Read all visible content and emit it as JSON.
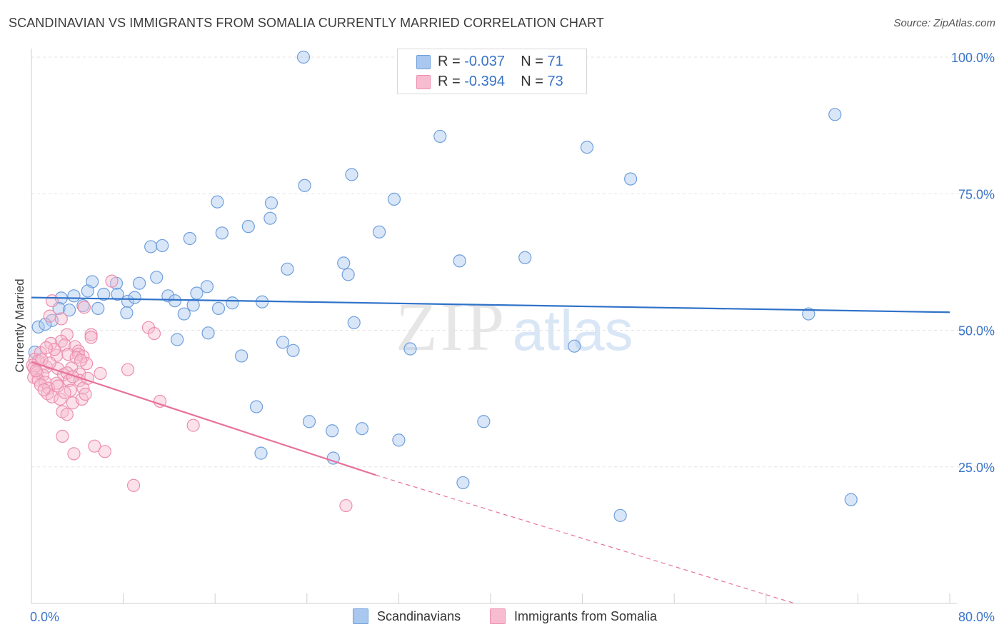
{
  "title": "SCANDINAVIAN VS IMMIGRANTS FROM SOMALIA CURRENTLY MARRIED CORRELATION CHART",
  "source": "Source: ZipAtlas.com",
  "watermark": {
    "zip": "ZIP",
    "atlas": "atlas"
  },
  "legend_top": {
    "rows": [
      {
        "r_label": "R =",
        "r_value": "-0.037",
        "n_label": "N =",
        "n_value": "71"
      },
      {
        "r_label": "R =",
        "r_value": "-0.394",
        "n_label": "N =",
        "n_value": "73"
      }
    ]
  },
  "legend_bottom": {
    "series_a": "Scandinavians",
    "series_b": "Immigrants from Somalia"
  },
  "colors": {
    "blue_fill": "#a9c8f0",
    "blue_stroke": "#6f9fdc",
    "blue_line": "#2f72c9",
    "pink_fill": "#f7bcd0",
    "pink_stroke": "#ec8fae",
    "pink_line": "#e8719b",
    "tick_text": "#3a74c8",
    "grid": "#e3e3e3"
  },
  "chart_data": {
    "type": "scatter",
    "title": "SCANDINAVIAN VS IMMIGRANTS FROM SOMALIA CURRENTLY MARRIED CORRELATION CHART",
    "xlabel": "",
    "ylabel": "Currently Married",
    "xlim": [
      0,
      80
    ],
    "ylim": [
      0,
      100
    ],
    "x_tick_labels": [
      "0.0%",
      "80.0%"
    ],
    "y_ticks": [
      25,
      50,
      75,
      100
    ],
    "y_tick_labels": [
      "25.0%",
      "50.0%",
      "75.0%",
      "100.0%"
    ],
    "grid": true,
    "series": [
      {
        "name": "Scandinavians",
        "r": -0.037,
        "n": 71,
        "trend": {
          "x": [
            0,
            80
          ],
          "y": [
            56.0,
            53.3
          ]
        },
        "points": [
          [
            23.7,
            100.0
          ],
          [
            70.0,
            89.5
          ],
          [
            35.6,
            85.5
          ],
          [
            48.4,
            83.5
          ],
          [
            27.9,
            78.5
          ],
          [
            52.2,
            77.7
          ],
          [
            23.8,
            76.5
          ],
          [
            16.2,
            73.5
          ],
          [
            20.9,
            73.3
          ],
          [
            31.6,
            74.0
          ],
          [
            20.8,
            70.5
          ],
          [
            18.9,
            69.0
          ],
          [
            16.6,
            67.8
          ],
          [
            30.3,
            68.0
          ],
          [
            13.8,
            66.8
          ],
          [
            10.4,
            65.3
          ],
          [
            11.4,
            65.5
          ],
          [
            37.3,
            62.7
          ],
          [
            43.0,
            63.3
          ],
          [
            22.3,
            61.2
          ],
          [
            27.2,
            62.3
          ],
          [
            27.6,
            60.2
          ],
          [
            10.9,
            59.7
          ],
          [
            5.3,
            58.9
          ],
          [
            7.4,
            58.6
          ],
          [
            9.4,
            58.6
          ],
          [
            15.3,
            58.0
          ],
          [
            4.9,
            57.2
          ],
          [
            14.4,
            56.8
          ],
          [
            3.7,
            56.3
          ],
          [
            6.3,
            56.6
          ],
          [
            7.5,
            56.6
          ],
          [
            2.6,
            55.9
          ],
          [
            8.4,
            55.3
          ],
          [
            9.0,
            56.0
          ],
          [
            11.9,
            56.3
          ],
          [
            12.5,
            55.4
          ],
          [
            17.5,
            55.0
          ],
          [
            20.1,
            55.2
          ],
          [
            4.5,
            54.5
          ],
          [
            2.4,
            54.0
          ],
          [
            3.3,
            53.7
          ],
          [
            5.8,
            54.0
          ],
          [
            14.1,
            54.6
          ],
          [
            16.3,
            54.0
          ],
          [
            8.3,
            53.2
          ],
          [
            13.3,
            53.0
          ],
          [
            1.8,
            51.8
          ],
          [
            0.6,
            50.6
          ],
          [
            1.2,
            51.1
          ],
          [
            28.1,
            51.4
          ],
          [
            67.7,
            53.0
          ],
          [
            15.4,
            49.5
          ],
          [
            12.7,
            48.3
          ],
          [
            21.9,
            47.8
          ],
          [
            22.8,
            46.3
          ],
          [
            33.0,
            46.6
          ],
          [
            47.3,
            47.1
          ],
          [
            18.3,
            45.3
          ],
          [
            0.3,
            46.0
          ],
          [
            19.6,
            36.0
          ],
          [
            24.2,
            33.3
          ],
          [
            26.2,
            31.6
          ],
          [
            28.8,
            32.0
          ],
          [
            32.0,
            29.9
          ],
          [
            39.4,
            33.3
          ],
          [
            20.0,
            27.5
          ],
          [
            26.3,
            26.6
          ],
          [
            37.6,
            22.1
          ],
          [
            51.3,
            16.1
          ],
          [
            71.4,
            19.0
          ]
        ]
      },
      {
        "name": "Immigrants from Somalia",
        "r": -0.394,
        "n": 73,
        "trend": {
          "x": [
            0,
            30
          ],
          "y": [
            44.2,
            23.5
          ],
          "dashed_to": {
            "x": 66.5,
            "y": 0
          }
        },
        "points": [
          [
            7.0,
            59.0
          ],
          [
            1.8,
            55.4
          ],
          [
            4.6,
            54.2
          ],
          [
            1.6,
            52.6
          ],
          [
            2.6,
            52.1
          ],
          [
            10.2,
            50.5
          ],
          [
            3.1,
            49.2
          ],
          [
            5.2,
            49.2
          ],
          [
            10.7,
            49.4
          ],
          [
            5.2,
            48.7
          ],
          [
            2.6,
            48.0
          ],
          [
            1.7,
            47.6
          ],
          [
            2.9,
            47.3
          ],
          [
            3.8,
            47.0
          ],
          [
            4.1,
            46.2
          ],
          [
            0.8,
            45.9
          ],
          [
            2.2,
            45.4
          ],
          [
            3.2,
            45.6
          ],
          [
            4.1,
            45.6
          ],
          [
            4.5,
            45.2
          ],
          [
            0.3,
            44.7
          ],
          [
            0.6,
            44.4
          ],
          [
            0.1,
            43.6
          ],
          [
            0.2,
            43.1
          ],
          [
            1.3,
            43.3
          ],
          [
            2.3,
            43.0
          ],
          [
            3.5,
            43.1
          ],
          [
            4.8,
            43.9
          ],
          [
            0.5,
            42.3
          ],
          [
            1.0,
            41.8
          ],
          [
            2.8,
            41.9
          ],
          [
            3.1,
            42.2
          ],
          [
            4.2,
            42.0
          ],
          [
            6.0,
            42.1
          ],
          [
            8.4,
            42.8
          ],
          [
            0.2,
            41.4
          ],
          [
            0.6,
            40.9
          ],
          [
            1.2,
            40.5
          ],
          [
            2.2,
            40.3
          ],
          [
            3.3,
            40.8
          ],
          [
            4.2,
            40.8
          ],
          [
            0.8,
            40.0
          ],
          [
            1.5,
            39.4
          ],
          [
            2.3,
            39.8
          ],
          [
            3.4,
            39.0
          ],
          [
            4.5,
            39.4
          ],
          [
            1.4,
            38.4
          ],
          [
            1.8,
            37.8
          ],
          [
            2.5,
            37.4
          ],
          [
            3.6,
            36.7
          ],
          [
            4.4,
            37.4
          ],
          [
            4.7,
            38.3
          ],
          [
            11.2,
            37.0
          ],
          [
            2.7,
            35.1
          ],
          [
            3.1,
            34.6
          ],
          [
            14.1,
            32.6
          ],
          [
            2.7,
            30.6
          ],
          [
            5.5,
            28.8
          ],
          [
            6.4,
            27.8
          ],
          [
            3.7,
            27.4
          ],
          [
            8.9,
            21.6
          ],
          [
            27.4,
            17.9
          ],
          [
            0.9,
            44.6
          ],
          [
            1.6,
            44.0
          ],
          [
            2.0,
            46.5
          ],
          [
            3.9,
            45.0
          ],
          [
            4.9,
            41.2
          ],
          [
            0.4,
            42.6
          ],
          [
            1.1,
            39.1
          ],
          [
            2.9,
            38.6
          ],
          [
            3.6,
            41.5
          ],
          [
            4.3,
            44.5
          ],
          [
            1.3,
            46.8
          ]
        ]
      }
    ]
  }
}
